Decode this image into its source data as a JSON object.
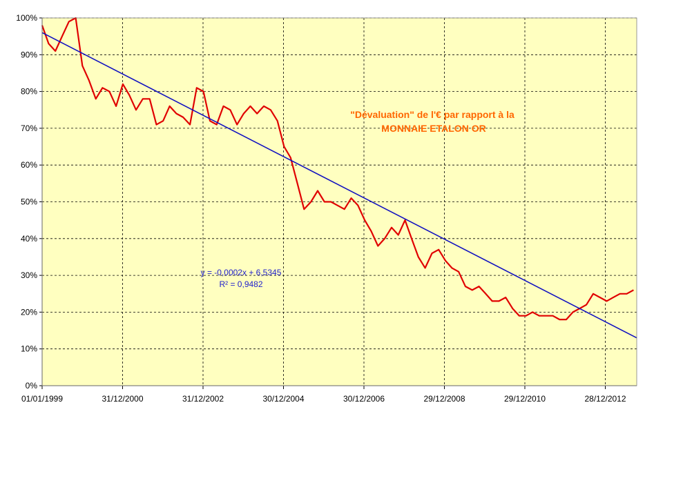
{
  "chart_data": {
    "type": "line",
    "title_lines": [
      "\"Dévaluation\" de l'€ par rapport à la",
      "MONNAIE ETALON OR"
    ],
    "xlabel": "",
    "ylabel": "",
    "y_ticks": [
      "0%",
      "10%",
      "20%",
      "30%",
      "40%",
      "50%",
      "60%",
      "70%",
      "80%",
      "90%",
      "100%"
    ],
    "ylim": [
      0,
      100
    ],
    "x_ticks": [
      "01/01/1999",
      "31/12/2000",
      "31/12/2002",
      "30/12/2004",
      "30/12/2006",
      "29/12/2008",
      "29/12/2010",
      "28/12/2012"
    ],
    "xlim": [
      "1999-01-01",
      "2013-09-30"
    ],
    "grid": true,
    "plot_background": "#ffffc0",
    "series": [
      {
        "name": "",
        "color": "#e00000",
        "x": [
          "1999-01-01",
          "1999-03-01",
          "1999-05-01",
          "1999-07-01",
          "1999-09-01",
          "1999-11-01",
          "2000-01-01",
          "2000-03-01",
          "2000-05-01",
          "2000-07-01",
          "2000-09-01",
          "2000-11-01",
          "2001-01-01",
          "2001-03-01",
          "2001-05-01",
          "2001-07-01",
          "2001-09-01",
          "2001-11-01",
          "2002-01-01",
          "2002-03-01",
          "2002-05-01",
          "2002-07-01",
          "2002-09-01",
          "2002-11-01",
          "2003-01-01",
          "2003-03-01",
          "2003-05-01",
          "2003-07-01",
          "2003-09-01",
          "2003-11-01",
          "2004-01-01",
          "2004-03-01",
          "2004-05-01",
          "2004-07-01",
          "2004-09-01",
          "2004-11-01",
          "2005-01-01",
          "2005-03-01",
          "2005-05-01",
          "2005-07-01",
          "2005-09-01",
          "2005-11-01",
          "2006-01-01",
          "2006-03-01",
          "2006-05-01",
          "2006-07-01",
          "2006-09-01",
          "2006-11-01",
          "2007-01-01",
          "2007-03-01",
          "2007-05-01",
          "2007-07-01",
          "2007-09-01",
          "2007-11-01",
          "2008-01-01",
          "2008-03-01",
          "2008-05-01",
          "2008-07-01",
          "2008-09-01",
          "2008-11-01",
          "2009-01-01",
          "2009-03-01",
          "2009-05-01",
          "2009-07-01",
          "2009-09-01",
          "2009-11-01",
          "2010-01-01",
          "2010-03-01",
          "2010-05-01",
          "2010-07-01",
          "2010-09-01",
          "2010-11-01",
          "2011-01-01",
          "2011-03-01",
          "2011-05-01",
          "2011-07-01",
          "2011-09-01",
          "2011-11-01",
          "2012-01-01",
          "2012-03-01",
          "2012-05-01",
          "2012-07-01",
          "2012-09-01",
          "2012-11-01",
          "2013-01-01",
          "2013-03-01",
          "2013-05-01",
          "2013-07-01",
          "2013-09-01"
        ],
        "values": [
          98,
          93,
          91,
          95,
          99,
          100,
          87,
          83,
          78,
          81,
          80,
          76,
          82,
          79,
          75,
          78,
          78,
          71,
          72,
          76,
          74,
          73,
          71,
          81,
          80,
          72,
          71,
          76,
          75,
          71,
          74,
          76,
          74,
          76,
          75,
          72,
          65,
          62,
          55,
          48,
          50,
          53,
          50,
          50,
          49,
          48,
          51,
          49,
          45,
          42,
          38,
          40,
          43,
          41,
          45,
          40,
          35,
          32,
          36,
          37,
          34,
          32,
          31,
          27,
          26,
          27,
          25,
          23,
          23,
          24,
          21,
          19,
          19,
          20,
          19,
          19,
          19,
          18,
          18,
          20,
          21,
          22,
          25,
          24,
          23,
          24,
          25,
          25,
          26
        ]
      }
    ],
    "trendline": {
      "color": "#1010c0",
      "x": [
        "1999-01-01",
        "2013-09-30"
      ],
      "values": [
        96,
        13
      ],
      "equation": "y = -0,0002x + 6,5345",
      "r2_label": "R² = 0,9482"
    }
  }
}
